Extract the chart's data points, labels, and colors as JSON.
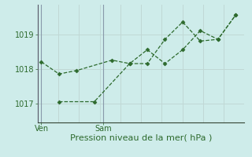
{
  "line1_x": [
    0,
    1,
    2,
    4,
    5,
    6,
    7,
    8,
    9,
    10,
    11
  ],
  "line1_y": [
    1018.2,
    1017.85,
    1017.95,
    1018.25,
    1018.15,
    1018.15,
    1018.85,
    1019.35,
    1018.8,
    1018.85,
    1019.55
  ],
  "line2_x": [
    1,
    3,
    5,
    6,
    7,
    8,
    9,
    10,
    11
  ],
  "line2_y": [
    1017.05,
    1017.05,
    1018.15,
    1018.55,
    1018.15,
    1018.55,
    1019.1,
    1018.85,
    1019.55
  ],
  "color": "#2d6a2d",
  "bg_color": "#ceecea",
  "grid_h_color": "#c0d8d5",
  "grid_v_color": "#c0d8d5",
  "xlabel": "Pression niveau de la mer( hPa )",
  "yticks": [
    1017,
    1018,
    1019
  ],
  "ylim": [
    1016.45,
    1019.85
  ],
  "xlim": [
    -0.2,
    11.5
  ],
  "ven_x": 0,
  "sam_x": 3.5,
  "xtick_positions": [
    0,
    3.5
  ],
  "xtick_labels": [
    "Ven",
    "Sam"
  ],
  "xlabel_fontsize": 8,
  "ytick_fontsize": 7,
  "xtick_fontsize": 7
}
